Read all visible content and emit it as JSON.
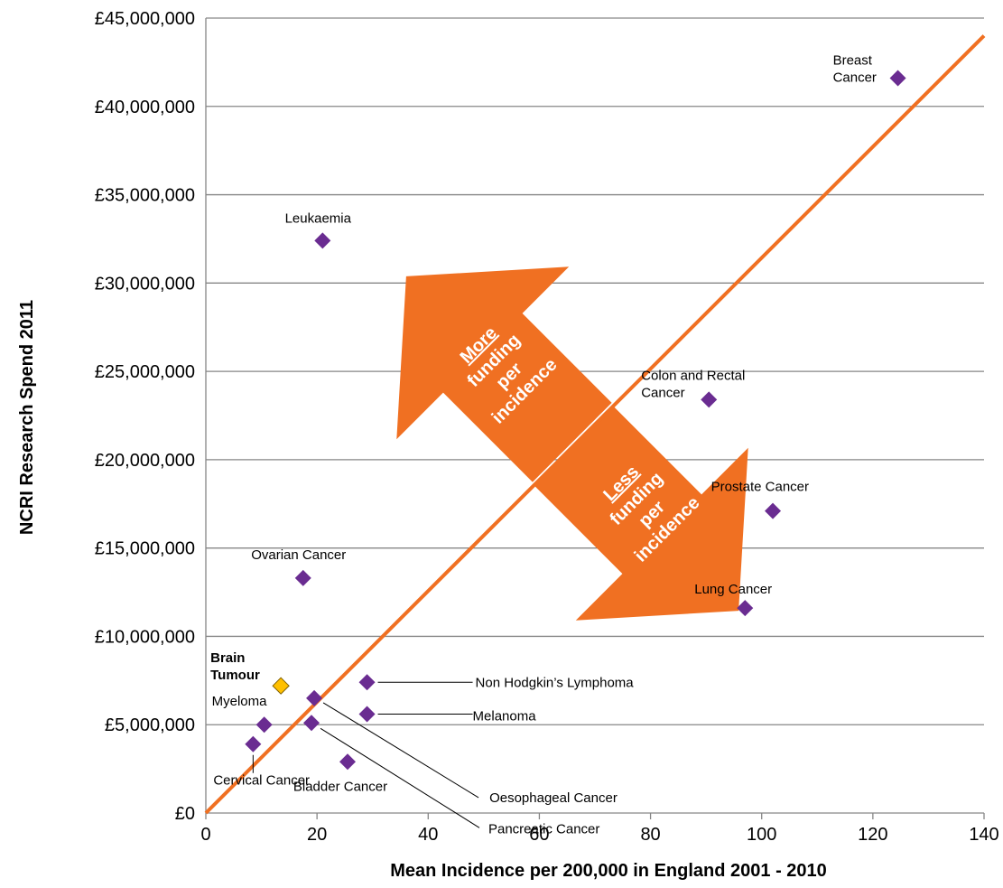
{
  "chart_data": {
    "type": "scatter",
    "xlabel": "Mean Incidence per 200,000 in England 2001 - 2010",
    "ylabel": "NCRI Research Spend 2011",
    "xlim": [
      0,
      140
    ],
    "ylim": [
      0,
      45000000
    ],
    "x_ticks": [
      "0",
      "20",
      "40",
      "60",
      "80",
      "100",
      "120",
      "140"
    ],
    "y_ticks": [
      "£0",
      "£5,000,000",
      "£10,000,000",
      "£15,000,000",
      "£20,000,000",
      "£25,000,000",
      "£30,000,000",
      "£35,000,000",
      "£40,000,000",
      "£45,000,000"
    ],
    "grid": "horizontal",
    "colors": {
      "points": "#6a2c91",
      "highlight": "#ffc000",
      "trend": "#f07022",
      "gridline": "#868686"
    },
    "points": [
      {
        "label": "Breast Cancer",
        "x": 124.5,
        "y": 41600000
      },
      {
        "label": "Leukaemia",
        "x": 21,
        "y": 32400000
      },
      {
        "label": "Colon and Rectal Cancer",
        "x": 90.5,
        "y": 23400000
      },
      {
        "label": "Prostate Cancer",
        "x": 102,
        "y": 17100000
      },
      {
        "label": "Ovarian Cancer",
        "x": 17.5,
        "y": 13300000
      },
      {
        "label": "Lung Cancer",
        "x": 97,
        "y": 11600000
      },
      {
        "label": "Brain Tumour",
        "x": 13.5,
        "y": 7200000,
        "highlight": true
      },
      {
        "label": "Non Hodgkin’s Lymphoma",
        "x": 29,
        "y": 7400000
      },
      {
        "label": "Oesophageal Cancer",
        "x": 19.5,
        "y": 6500000
      },
      {
        "label": "Melanoma",
        "x": 29,
        "y": 5600000
      },
      {
        "label": "Myeloma",
        "x": 10.5,
        "y": 5000000
      },
      {
        "label": "Pancreatic Cancer",
        "x": 19,
        "y": 5100000
      },
      {
        "label": "Cervical Cancer",
        "x": 8.5,
        "y": 3900000
      },
      {
        "label": "Bladder Cancer",
        "x": 25.5,
        "y": 2900000
      }
    ],
    "trend_line": {
      "from": [
        0,
        0
      ],
      "to": [
        140,
        44000000
      ]
    },
    "annotations": [
      {
        "text": [
          "More",
          "funding",
          "per",
          "incidence"
        ],
        "underline_first": true
      },
      {
        "text": [
          "Less",
          "funding",
          "per",
          "incidence"
        ],
        "underline_first": true
      }
    ]
  }
}
